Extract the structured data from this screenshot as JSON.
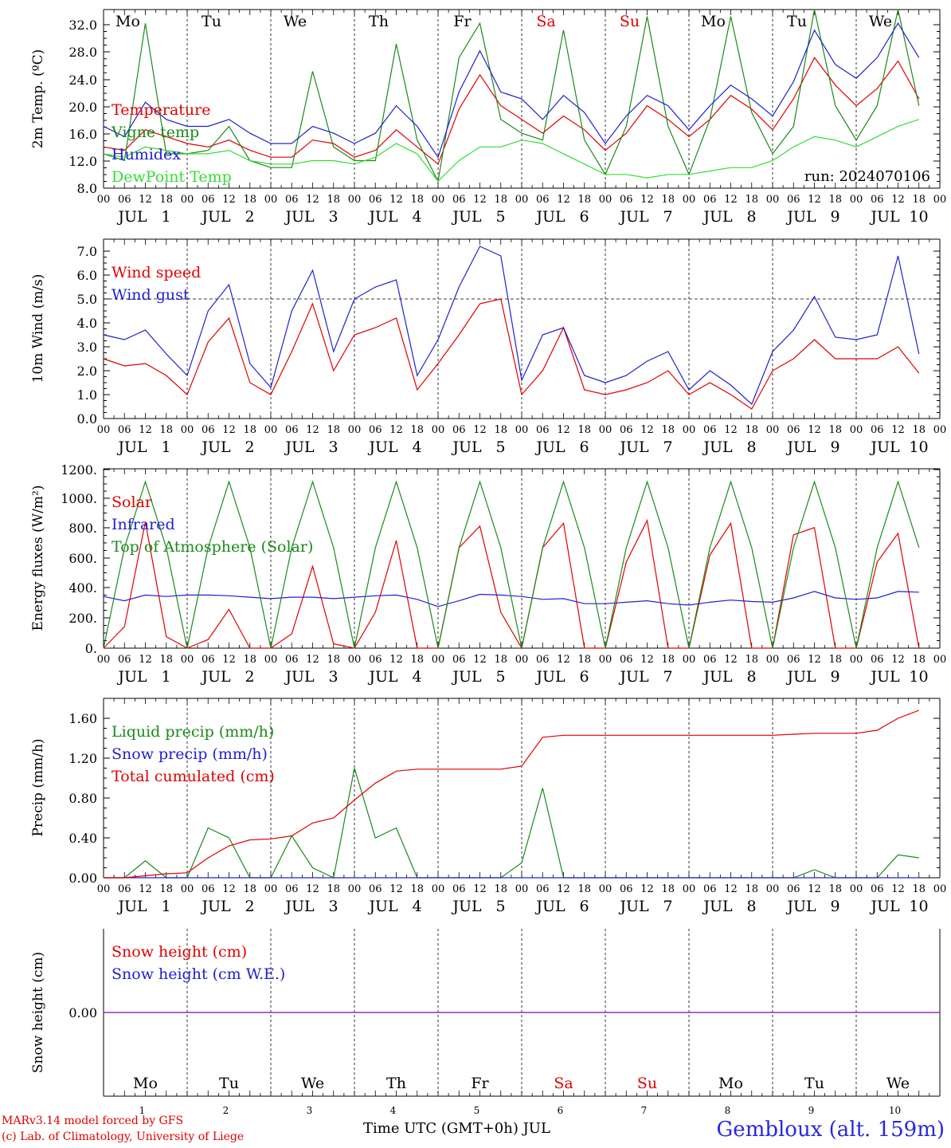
{
  "days": [
    {
      "abbr": "Mo",
      "num": "1",
      "weekend": false
    },
    {
      "abbr": "Tu",
      "num": "2",
      "weekend": false
    },
    {
      "abbr": "We",
      "num": "3",
      "weekend": false
    },
    {
      "abbr": "Th",
      "num": "4",
      "weekend": false
    },
    {
      "abbr": "Fr",
      "num": "5",
      "weekend": false
    },
    {
      "abbr": "Sa",
      "num": "6",
      "weekend": true
    },
    {
      "abbr": "Su",
      "num": "7",
      "weekend": true
    },
    {
      "abbr": "Mo",
      "num": "8",
      "weekend": false
    },
    {
      "abbr": "Tu",
      "num": "9",
      "weekend": false
    },
    {
      "abbr": "We",
      "num": "10",
      "weekend": false
    }
  ],
  "hour_ticks": [
    "00",
    "06",
    "12",
    "18"
  ],
  "month_label": "JUL",
  "colors": {
    "red": "#e00000",
    "green": "#1a8a1a",
    "blue": "#2020d0",
    "lightgreen": "#33dd33",
    "purple": "#8a2be2",
    "weekend": "#e00000"
  },
  "chart_data": [
    {
      "type": "line",
      "ylabel": "2m Temp. (ºC)",
      "ylim": [
        8,
        34
      ],
      "yticks": [
        "8.0",
        "12.0",
        "16.0",
        "20.0",
        "24.0",
        "28.0",
        "32.0"
      ],
      "annotation": "run: 2024070106",
      "legend": [
        "Temperature",
        "Vigne temp",
        "Humidex",
        "DewPoint Temp"
      ],
      "x_hours": [
        0,
        6,
        12,
        18,
        24,
        30,
        36,
        42,
        48,
        54,
        60,
        66,
        72,
        78,
        84,
        90,
        96,
        102,
        108,
        114,
        120,
        126,
        132,
        138,
        144,
        150,
        156,
        162,
        168,
        174,
        180,
        186,
        192,
        198,
        204,
        210,
        216,
        222,
        228,
        234
      ],
      "series": [
        {
          "name": "Temperature",
          "color": "red",
          "values": [
            14,
            13.5,
            16.5,
            15.5,
            14.5,
            14,
            15,
            13.5,
            12.5,
            12.5,
            15,
            14.5,
            12.5,
            13.5,
            16.5,
            14,
            11.5,
            19.5,
            24.5,
            20,
            18,
            16,
            18.5,
            16.5,
            13.5,
            16,
            20,
            18,
            15.5,
            18,
            21.5,
            19.5,
            16.5,
            21,
            27,
            23,
            20,
            22.5,
            26.5,
            21
          ]
        },
        {
          "name": "Vigne temp",
          "color": "green",
          "values": [
            13,
            12,
            32,
            13,
            13,
            13.5,
            17,
            12,
            11,
            11,
            25,
            14,
            12,
            12,
            29,
            15,
            9,
            27,
            32,
            18,
            16,
            15,
            31,
            15,
            10,
            17,
            33,
            17,
            10,
            18,
            33,
            19,
            13,
            17,
            34,
            20,
            15,
            20,
            34,
            20
          ]
        },
        {
          "name": "Humidex",
          "color": "blue",
          "values": [
            17,
            15.5,
            20.5,
            18,
            17,
            17,
            18,
            16,
            14.5,
            14.5,
            17,
            16,
            14.5,
            16,
            20,
            17,
            12.5,
            22,
            28,
            22,
            21,
            18,
            21.5,
            19,
            14.5,
            18.5,
            21.5,
            20,
            16.5,
            20,
            23,
            21,
            18.5,
            23.5,
            31,
            26,
            24,
            27,
            32,
            27
          ]
        },
        {
          "name": "DewPoint Temp",
          "color": "lightgreen",
          "values": [
            13,
            12.5,
            14,
            13.5,
            13,
            13,
            13.5,
            12,
            11.5,
            11.5,
            12,
            12,
            11.5,
            12.5,
            14.5,
            13,
            9,
            12,
            14,
            14,
            15,
            14.5,
            13,
            11.5,
            10,
            10,
            9.5,
            10,
            10,
            10.5,
            11,
            11,
            12,
            14,
            15.5,
            15,
            14,
            15.5,
            17,
            18
          ]
        }
      ]
    },
    {
      "type": "line",
      "ylabel": "10m Wind (m/s)",
      "ylim": [
        0,
        7.5
      ],
      "yticks": [
        "0.0",
        "1.0",
        "2.0",
        "3.0",
        "4.0",
        "5.0",
        "6.0",
        "7.0"
      ],
      "legend": [
        "Wind speed",
        "Wind gust"
      ],
      "x_hours": [
        0,
        6,
        12,
        18,
        24,
        30,
        36,
        42,
        48,
        54,
        60,
        66,
        72,
        78,
        84,
        90,
        96,
        102,
        108,
        114,
        120,
        126,
        132,
        138,
        144,
        150,
        156,
        162,
        168,
        174,
        180,
        186,
        192,
        198,
        204,
        210,
        216,
        222,
        228,
        234
      ],
      "series": [
        {
          "name": "Wind speed",
          "color": "red",
          "values": [
            2.5,
            2.2,
            2.3,
            1.8,
            1.0,
            3.2,
            4.2,
            1.5,
            1,
            2.8,
            4.8,
            2,
            3.5,
            3.8,
            4.2,
            1.2,
            2.3,
            3.5,
            4.8,
            5,
            1,
            2,
            3.8,
            1.2,
            1,
            1.2,
            1.5,
            2,
            1,
            1.5,
            1,
            0.4,
            2.0,
            2.5,
            3.3,
            2.5,
            2.5,
            2.5,
            3.0,
            1.9
          ]
        },
        {
          "name": "Wind gust",
          "color": "blue",
          "values": [
            3.5,
            3.3,
            3.7,
            2.7,
            1.8,
            4.5,
            5.6,
            2.3,
            1.3,
            4.5,
            6.2,
            2.8,
            5,
            5.5,
            5.8,
            1.8,
            3.3,
            5.5,
            7.2,
            6.8,
            1.6,
            3.5,
            3.8,
            1.8,
            1.5,
            1.8,
            2.4,
            2.8,
            1.2,
            2.0,
            1.4,
            0.6,
            2.8,
            3.7,
            5.1,
            3.4,
            3.3,
            3.5,
            6.8,
            2.7
          ]
        }
      ]
    },
    {
      "type": "line",
      "ylabel": "Energy fluxes (W/m²)",
      "ylim": [
        0,
        1250
      ],
      "yticks": [
        "0.",
        "200.",
        "400.",
        "600.",
        "800.",
        "1000.",
        "1200."
      ],
      "legend": [
        "Solar",
        "Infrared",
        "Top of Atmosphere (Solar)"
      ],
      "x_hours": [
        0,
        6,
        12,
        18,
        24,
        30,
        36,
        42,
        48,
        54,
        60,
        66,
        72,
        78,
        84,
        90,
        96,
        102,
        108,
        114,
        120,
        126,
        132,
        138,
        144,
        150,
        156,
        162,
        168,
        174,
        180,
        186,
        192,
        198,
        204,
        210,
        216,
        222,
        228,
        234
      ],
      "series": [
        {
          "name": "Solar",
          "color": "red",
          "values": [
            0,
            150,
            880,
            80,
            0,
            60,
            270,
            0,
            0,
            100,
            570,
            30,
            0,
            250,
            750,
            0,
            0,
            700,
            850,
            250,
            0,
            700,
            870,
            0,
            0,
            600,
            890,
            0,
            0,
            650,
            870,
            0,
            0,
            790,
            840,
            0,
            0,
            600,
            800,
            0
          ]
        },
        {
          "name": "Infrared",
          "color": "blue",
          "values": [
            360,
            330,
            370,
            360,
            370,
            370,
            365,
            355,
            345,
            355,
            355,
            345,
            355,
            365,
            370,
            340,
            290,
            330,
            375,
            370,
            360,
            340,
            345,
            310,
            310,
            320,
            330,
            310,
            300,
            320,
            335,
            325,
            320,
            350,
            395,
            350,
            340,
            350,
            395,
            390
          ]
        },
        {
          "name": "Top of Atmosphere (Solar)",
          "color": "green",
          "values": [
            0,
            700,
            1160,
            700,
            0,
            700,
            1160,
            700,
            0,
            700,
            1160,
            700,
            0,
            700,
            1160,
            700,
            0,
            700,
            1160,
            700,
            0,
            700,
            1160,
            700,
            0,
            700,
            1160,
            700,
            0,
            700,
            1160,
            700,
            0,
            700,
            1160,
            700,
            0,
            700,
            1160,
            700
          ]
        }
      ]
    },
    {
      "type": "line",
      "ylabel": "Precip (mm/h)",
      "ylim": [
        0,
        1.8
      ],
      "yticks": [
        "0.00",
        "0.40",
        "0.80",
        "1.20",
        "1.60"
      ],
      "legend": [
        "Liquid precip (mm/h)",
        "Snow precip (mm/h)",
        "Total cumulated (cm)"
      ],
      "x_hours": [
        0,
        6,
        12,
        18,
        24,
        30,
        36,
        42,
        48,
        54,
        60,
        66,
        72,
        78,
        84,
        90,
        96,
        102,
        108,
        114,
        120,
        126,
        132,
        138,
        144,
        150,
        156,
        162,
        168,
        174,
        180,
        186,
        192,
        198,
        204,
        210,
        216,
        222,
        228,
        234
      ],
      "series": [
        {
          "name": "Liquid precip (mm/h)",
          "color": "green",
          "values": [
            0,
            0,
            0.17,
            0,
            0,
            0.5,
            0.4,
            0,
            0,
            0.42,
            0.1,
            0,
            1.1,
            0.4,
            0.5,
            0,
            0,
            0,
            0,
            0,
            0.15,
            0.9,
            0,
            0,
            0,
            0,
            0,
            0,
            0,
            0,
            0,
            0,
            0,
            0,
            0.08,
            0,
            0,
            0,
            0.23,
            0.2
          ]
        },
        {
          "name": "Snow precip (mm/h)",
          "color": "blue",
          "values": [
            0,
            0,
            0,
            0,
            0,
            0,
            0,
            0,
            0,
            0,
            0,
            0,
            0,
            0,
            0,
            0,
            0,
            0,
            0,
            0,
            0,
            0,
            0,
            0,
            0,
            0,
            0,
            0,
            0,
            0,
            0,
            0,
            0,
            0,
            0,
            0,
            0,
            0,
            0,
            0
          ]
        },
        {
          "name": "Total cumulated (cm)",
          "color": "red",
          "values": [
            0,
            0,
            0.02,
            0.04,
            0.05,
            0.2,
            0.32,
            0.38,
            0.39,
            0.42,
            0.55,
            0.6,
            0.78,
            0.95,
            1.07,
            1.09,
            1.09,
            1.09,
            1.09,
            1.09,
            1.12,
            1.41,
            1.43,
            1.43,
            1.43,
            1.43,
            1.43,
            1.43,
            1.43,
            1.43,
            1.43,
            1.43,
            1.43,
            1.44,
            1.45,
            1.45,
            1.45,
            1.48,
            1.6,
            1.68
          ]
        }
      ]
    },
    {
      "type": "line",
      "ylabel": "Snow height (cm)",
      "ylim": [
        -1,
        1
      ],
      "yticks": [
        "0.00"
      ],
      "legend": [
        "Snow height (cm)",
        "Snow height (cm W.E.)"
      ],
      "x_hours": [
        0,
        240
      ],
      "series": [
        {
          "name": "Snow height (cm)",
          "color": "red",
          "values": [
            0,
            0
          ]
        },
        {
          "name": "Snow height (cm W.E.)",
          "color": "purple",
          "values": [
            0,
            0
          ]
        }
      ]
    }
  ],
  "footer": {
    "credit_line1": "MARv3.14 model forced by GFS",
    "credit_line2": "(c) Lab. of Climatology, University of Liege",
    "time_axis": "Time UTC (GMT+0h) JUL",
    "station": "Gembloux (alt. 159m)"
  }
}
